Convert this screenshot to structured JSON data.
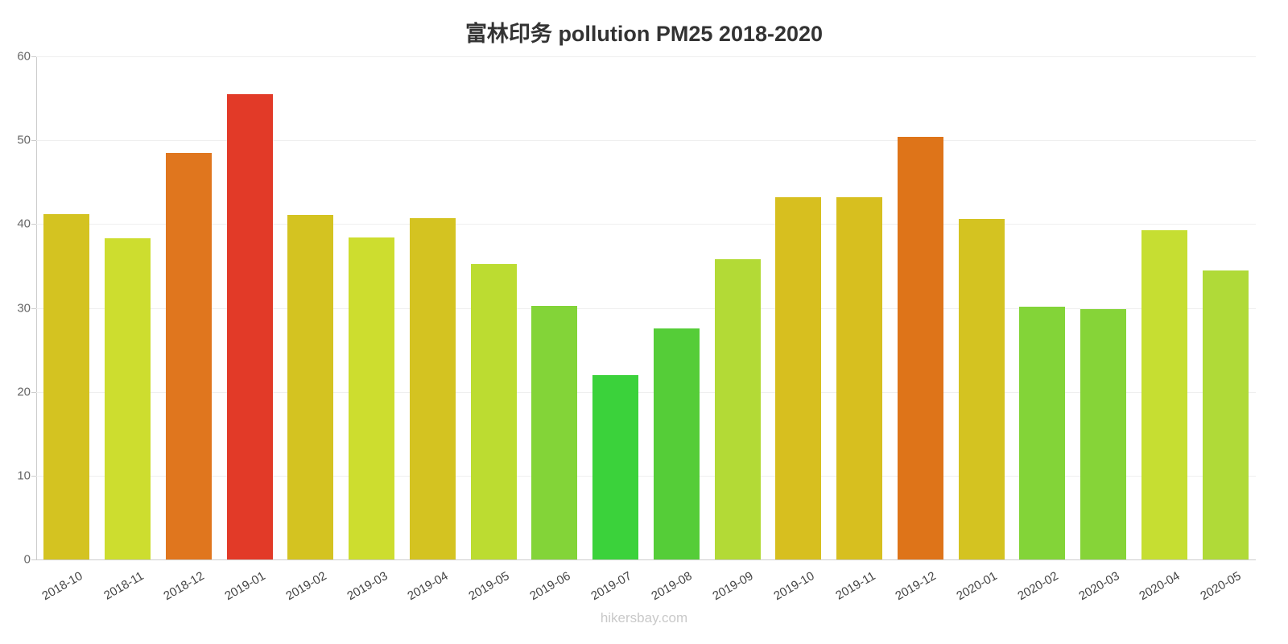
{
  "header": {
    "title": "富林印务 pollution PM25 2018-2020"
  },
  "footer": {
    "link_text": "hikersbay.com"
  },
  "chart_data": {
    "type": "bar",
    "title": "富林印务 pollution PM25 2018-2020",
    "xlabel": "",
    "ylabel": "",
    "ylim": [
      0,
      60
    ],
    "yticks": [
      0,
      10,
      20,
      30,
      40,
      50,
      60
    ],
    "grid": true,
    "legend": false,
    "categories": [
      "2018-10",
      "2018-11",
      "2018-12",
      "2019-01",
      "2019-02",
      "2019-03",
      "2019-04",
      "2019-05",
      "2019-06",
      "2019-07",
      "2019-08",
      "2019-09",
      "2019-10",
      "2019-11",
      "2019-12",
      "2020-01",
      "2020-02",
      "2020-03",
      "2020-04",
      "2020-05"
    ],
    "values": [
      41.2,
      38.3,
      48.5,
      55.5,
      41.1,
      38.4,
      40.7,
      35.2,
      30.2,
      22.0,
      27.6,
      35.8,
      43.2,
      43.2,
      50.4,
      40.6,
      30.1,
      29.9,
      39.3,
      34.5
    ],
    "bar_colors": [
      "#d4c321",
      "#cddd2f",
      "#e0761e",
      "#e23a28",
      "#d4c321",
      "#cddd2f",
      "#d4c321",
      "#bcdc31",
      "#83d438",
      "#3bd23b",
      "#55cd38",
      "#b3da36",
      "#d7bf1f",
      "#d7bf1f",
      "#de7419",
      "#d4c321",
      "#83d438",
      "#86d438",
      "#c6de32",
      "#b0da38"
    ]
  }
}
